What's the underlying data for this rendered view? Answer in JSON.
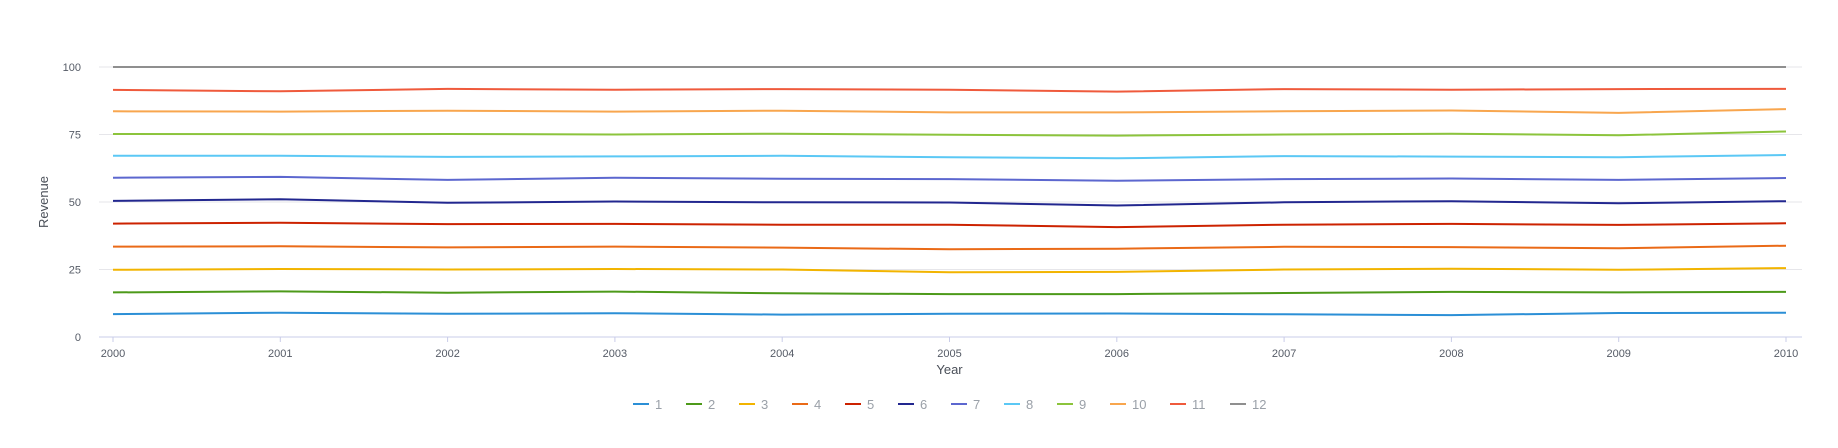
{
  "chart_data": {
    "type": "line",
    "title": "",
    "xlabel": "Year",
    "ylabel": "Revenue",
    "x": [
      2000,
      2001,
      2002,
      2003,
      2004,
      2005,
      2006,
      2007,
      2008,
      2009,
      2010
    ],
    "ylim": [
      0,
      100
    ],
    "yticks": [
      0,
      25,
      50,
      75,
      100
    ],
    "grid": "horizontal",
    "legend_position": "bottom",
    "series": [
      {
        "name": "1",
        "color": "#2b8fd6",
        "values": [
          8.5,
          9.0,
          8.6,
          8.8,
          8.3,
          8.6,
          8.7,
          8.4,
          8.1,
          8.9,
          9.0
        ]
      },
      {
        "name": "2",
        "color": "#4d9a1a",
        "values": [
          16.5,
          16.9,
          16.4,
          16.8,
          16.2,
          15.9,
          15.9,
          16.3,
          16.7,
          16.5,
          16.7
        ]
      },
      {
        "name": "3",
        "color": "#f2b400",
        "values": [
          24.9,
          25.2,
          25.0,
          25.2,
          25.0,
          24.0,
          24.1,
          25.0,
          25.3,
          24.9,
          25.5
        ]
      },
      {
        "name": "4",
        "color": "#ea6a17",
        "values": [
          33.5,
          33.6,
          33.2,
          33.5,
          33.1,
          32.5,
          32.7,
          33.4,
          33.3,
          32.9,
          33.8
        ]
      },
      {
        "name": "5",
        "color": "#cc2200",
        "values": [
          42.0,
          42.3,
          41.8,
          41.9,
          41.6,
          41.6,
          40.7,
          41.6,
          41.9,
          41.5,
          42.1
        ]
      },
      {
        "name": "6",
        "color": "#22278f",
        "values": [
          50.4,
          51.0,
          49.7,
          50.2,
          49.9,
          49.8,
          48.7,
          49.9,
          50.3,
          49.5,
          50.3
        ]
      },
      {
        "name": "7",
        "color": "#5c67cf",
        "values": [
          59.0,
          59.3,
          58.2,
          59.0,
          58.6,
          58.5,
          57.9,
          58.5,
          58.7,
          58.2,
          58.9
        ]
      },
      {
        "name": "8",
        "color": "#5bc8f5",
        "values": [
          67.1,
          67.1,
          66.7,
          66.9,
          67.1,
          66.6,
          66.2,
          67.0,
          66.8,
          66.6,
          67.4
        ]
      },
      {
        "name": "9",
        "color": "#8cc43c",
        "values": [
          75.2,
          75.1,
          75.2,
          75.0,
          75.3,
          74.9,
          74.6,
          75.0,
          75.3,
          74.7,
          76.1
        ]
      },
      {
        "name": "10",
        "color": "#f8a64e",
        "values": [
          83.6,
          83.5,
          83.8,
          83.5,
          83.8,
          83.2,
          83.2,
          83.6,
          83.9,
          83.0,
          84.4
        ]
      },
      {
        "name": "11",
        "color": "#ef5a3c",
        "values": [
          91.5,
          91.0,
          91.9,
          91.6,
          91.8,
          91.6,
          90.9,
          91.8,
          91.6,
          91.8,
          91.9
        ]
      },
      {
        "name": "12",
        "color": "#8f8f8f",
        "values": [
          100,
          100,
          100,
          100,
          100,
          100,
          100,
          100,
          100,
          100,
          100
        ]
      }
    ]
  }
}
